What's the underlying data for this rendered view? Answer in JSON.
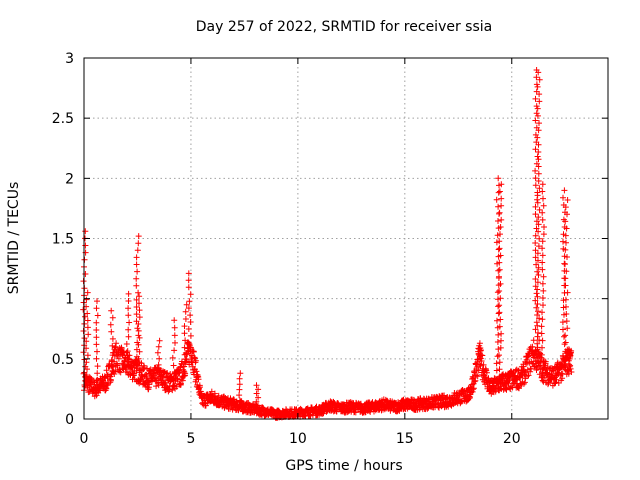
{
  "chart_data": {
    "type": "scatter",
    "title": "Day 257 of 2022, SRMTID for receiver ssia",
    "xlabel": "GPS time / hours",
    "ylabel": "SRMTID / TECUs",
    "xlim": [
      0,
      24.5
    ],
    "ylim": [
      0,
      3
    ],
    "grid": true,
    "marker": "+",
    "color": "#ff0000",
    "x_ticks": [
      0,
      5,
      10,
      15,
      20
    ],
    "x_tick_labels": [
      "0",
      "5",
      "10",
      "15",
      "20"
    ],
    "y_ticks": [
      0,
      0.5,
      1,
      1.5,
      2,
      2.5,
      3
    ],
    "y_tick_labels": [
      "0",
      "0.5",
      "1",
      "1.5",
      "2",
      "2.5",
      "3"
    ],
    "series": [
      {
        "name": "SRMTID",
        "baseline_profile": {
          "x": [
            0,
            0.5,
            1,
            1.5,
            2,
            2.5,
            3,
            3.5,
            4,
            4.5,
            5,
            5.5,
            6,
            6.5,
            7,
            7.5,
            8,
            8.5,
            9,
            9.5,
            10,
            10.5,
            11,
            11.5,
            12,
            12.5,
            13,
            13.5,
            14,
            14.5,
            15,
            15.5,
            16,
            16.5,
            17,
            17.5,
            18,
            18.5,
            19,
            19.5,
            20,
            20.5,
            21,
            21.5,
            22,
            22.5,
            22.8
          ],
          "y": [
            0.32,
            0.25,
            0.3,
            0.52,
            0.45,
            0.4,
            0.33,
            0.35,
            0.3,
            0.35,
            0.6,
            0.15,
            0.18,
            0.14,
            0.12,
            0.1,
            0.08,
            0.06,
            0.04,
            0.05,
            0.05,
            0.06,
            0.07,
            0.11,
            0.09,
            0.1,
            0.09,
            0.1,
            0.12,
            0.1,
            0.12,
            0.12,
            0.13,
            0.14,
            0.15,
            0.18,
            0.2,
            0.5,
            0.25,
            0.3,
            0.32,
            0.35,
            0.55,
            0.4,
            0.35,
            0.45,
            0.5
          ]
        },
        "spikes": [
          {
            "x": 0.02,
            "peak": 1.56
          },
          {
            "x": 0.15,
            "peak": 1.05
          },
          {
            "x": 0.6,
            "peak": 0.98
          },
          {
            "x": 1.3,
            "peak": 0.9
          },
          {
            "x": 2.05,
            "peak": 1.04
          },
          {
            "x": 2.5,
            "peak": 1.52
          },
          {
            "x": 2.6,
            "peak": 1.02
          },
          {
            "x": 3.5,
            "peak": 0.65
          },
          {
            "x": 4.2,
            "peak": 0.82
          },
          {
            "x": 4.75,
            "peak": 0.95
          },
          {
            "x": 4.95,
            "peak": 1.21
          },
          {
            "x": 7.3,
            "peak": 0.38
          },
          {
            "x": 8.1,
            "peak": 0.28
          },
          {
            "x": 18.5,
            "peak": 0.63
          },
          {
            "x": 19.35,
            "peak": 2.0
          },
          {
            "x": 19.45,
            "peak": 1.95
          },
          {
            "x": 21.15,
            "peak": 2.9
          },
          {
            "x": 21.25,
            "peak": 2.88
          },
          {
            "x": 21.45,
            "peak": 1.95
          },
          {
            "x": 22.45,
            "peak": 1.9
          },
          {
            "x": 22.55,
            "peak": 1.82
          },
          {
            "x": 22.7,
            "peak": 0.58
          }
        ]
      }
    ]
  }
}
